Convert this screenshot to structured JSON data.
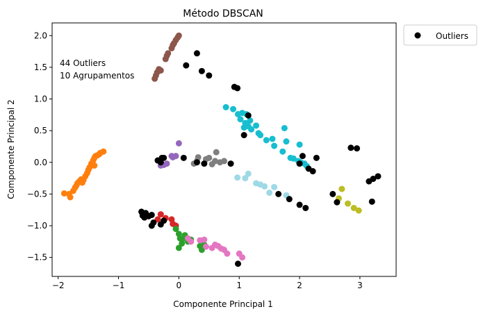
{
  "chart_data": {
    "type": "scatter",
    "title": "Método DBSCAN",
    "xlabel": "Componente Principal 1",
    "ylabel": "Componente Principal 2",
    "xlim": [
      -2.1,
      3.6
    ],
    "ylim": [
      -1.8,
      2.2
    ],
    "xticks": [
      -2,
      -1,
      0,
      1,
      2,
      3
    ],
    "yticks": [
      -1.5,
      -1.0,
      -0.5,
      0.0,
      0.5,
      1.0,
      1.5,
      2.0
    ],
    "grid": false,
    "legend_position": "outside-top-right",
    "annotation": [
      "44 Outliers",
      "10 Agrupamentos"
    ],
    "series": [
      {
        "name": "Outliers",
        "color": "#000000",
        "points": [
          [
            0.3,
            1.72
          ],
          [
            0.12,
            1.53
          ],
          [
            0.38,
            1.44
          ],
          [
            0.5,
            1.37
          ],
          [
            0.92,
            1.19
          ],
          [
            0.97,
            1.17
          ],
          [
            1.15,
            0.74
          ],
          [
            1.08,
            0.43
          ],
          [
            -0.35,
            0.03
          ],
          [
            -0.3,
            0.0
          ],
          [
            -0.28,
            0.07
          ],
          [
            -0.25,
            0.07
          ],
          [
            0.08,
            0.07
          ],
          [
            0.3,
            0.0
          ],
          [
            0.42,
            -0.02
          ],
          [
            0.86,
            -0.02
          ],
          [
            1.65,
            -0.5
          ],
          [
            1.83,
            -0.58
          ],
          [
            2.0,
            -0.02
          ],
          [
            2.05,
            0.1
          ],
          [
            2.15,
            -0.1
          ],
          [
            2.22,
            -0.14
          ],
          [
            2.28,
            0.07
          ],
          [
            2.0,
            -0.67
          ],
          [
            2.1,
            -0.72
          ],
          [
            2.55,
            -0.5
          ],
          [
            2.62,
            -0.63
          ],
          [
            2.85,
            0.23
          ],
          [
            2.95,
            0.22
          ],
          [
            3.15,
            -0.3
          ],
          [
            3.22,
            -0.26
          ],
          [
            3.3,
            -0.22
          ],
          [
            3.2,
            -0.62
          ],
          [
            -0.62,
            -0.78
          ],
          [
            -0.6,
            -0.84
          ],
          [
            -0.57,
            -0.87
          ],
          [
            -0.55,
            -0.8
          ],
          [
            -0.5,
            -0.85
          ],
          [
            -0.45,
            -0.83
          ],
          [
            -0.42,
            -0.95
          ],
          [
            -0.45,
            -1.0
          ],
          [
            -0.3,
            -0.98
          ],
          [
            -0.25,
            -0.92
          ],
          [
            0.98,
            -1.6
          ]
        ]
      },
      {
        "name": "",
        "color": "#8c564b",
        "points": [
          [
            -0.4,
            1.32
          ],
          [
            -0.38,
            1.37
          ],
          [
            -0.36,
            1.42
          ],
          [
            -0.33,
            1.47
          ],
          [
            -0.3,
            1.45
          ],
          [
            -0.22,
            1.63
          ],
          [
            -0.2,
            1.68
          ],
          [
            -0.18,
            1.72
          ],
          [
            -0.12,
            1.8
          ],
          [
            -0.1,
            1.85
          ],
          [
            -0.08,
            1.88
          ],
          [
            -0.05,
            1.93
          ],
          [
            -0.02,
            1.97
          ],
          [
            0.0,
            2.0
          ]
        ]
      },
      {
        "name": "",
        "color": "#17becf",
        "points": [
          [
            0.78,
            0.87
          ],
          [
            0.9,
            0.84
          ],
          [
            0.98,
            0.76
          ],
          [
            1.02,
            0.68
          ],
          [
            1.05,
            0.78
          ],
          [
            1.08,
            0.55
          ],
          [
            1.1,
            0.62
          ],
          [
            1.12,
            0.76
          ],
          [
            1.15,
            0.57
          ],
          [
            1.18,
            0.66
          ],
          [
            1.2,
            0.52
          ],
          [
            1.28,
            0.58
          ],
          [
            1.32,
            0.46
          ],
          [
            1.35,
            0.43
          ],
          [
            1.45,
            0.35
          ],
          [
            1.55,
            0.37
          ],
          [
            1.58,
            0.26
          ],
          [
            1.72,
            0.17
          ],
          [
            1.75,
            0.54
          ],
          [
            1.78,
            0.33
          ],
          [
            1.85,
            0.07
          ],
          [
            1.9,
            0.06
          ],
          [
            1.98,
            0.02
          ],
          [
            2.0,
            0.28
          ],
          [
            2.02,
            0.0
          ],
          [
            2.08,
            -0.02
          ],
          [
            2.12,
            -0.06
          ]
        ]
      },
      {
        "name": "",
        "color": "#ff7f0e",
        "points": [
          [
            -1.9,
            -0.49
          ],
          [
            -1.82,
            -0.5
          ],
          [
            -1.8,
            -0.55
          ],
          [
            -1.75,
            -0.45
          ],
          [
            -1.72,
            -0.4
          ],
          [
            -1.7,
            -0.37
          ],
          [
            -1.68,
            -0.33
          ],
          [
            -1.65,
            -0.3
          ],
          [
            -1.62,
            -0.27
          ],
          [
            -1.6,
            -0.32
          ],
          [
            -1.58,
            -0.28
          ],
          [
            -1.55,
            -0.22
          ],
          [
            -1.52,
            -0.17
          ],
          [
            -1.5,
            -0.12
          ],
          [
            -1.48,
            -0.08
          ],
          [
            -1.45,
            -0.02
          ],
          [
            -1.42,
            0.03
          ],
          [
            -1.4,
            0.07
          ],
          [
            -1.38,
            0.1
          ],
          [
            -1.35,
            0.11
          ],
          [
            -1.32,
            0.13
          ],
          [
            -1.3,
            0.15
          ],
          [
            -1.25,
            0.17
          ],
          [
            -1.4,
            -0.05
          ]
        ]
      },
      {
        "name": "",
        "color": "#9467bd",
        "points": [
          [
            -0.25,
            -0.04
          ],
          [
            -0.2,
            -0.02
          ],
          [
            -0.1,
            0.08
          ],
          [
            -0.05,
            0.1
          ],
          [
            -0.12,
            0.1
          ],
          [
            -0.3,
            -0.05
          ],
          [
            0.0,
            0.3
          ]
        ]
      },
      {
        "name": "",
        "color": "#7f7f7f",
        "points": [
          [
            0.25,
            -0.02
          ],
          [
            0.3,
            0.02
          ],
          [
            0.32,
            0.08
          ],
          [
            0.45,
            0.05
          ],
          [
            0.5,
            0.07
          ],
          [
            0.55,
            -0.03
          ],
          [
            0.6,
            0.02
          ],
          [
            0.62,
            0.16
          ],
          [
            0.68,
            0.0
          ],
          [
            0.75,
            0.02
          ]
        ]
      },
      {
        "name": "",
        "color": "#9edae5",
        "points": [
          [
            0.97,
            -0.24
          ],
          [
            1.1,
            -0.25
          ],
          [
            1.15,
            -0.18
          ],
          [
            1.28,
            -0.33
          ],
          [
            1.35,
            -0.35
          ],
          [
            1.42,
            -0.38
          ],
          [
            1.5,
            -0.48
          ],
          [
            1.58,
            -0.39
          ],
          [
            1.78,
            -0.52
          ]
        ]
      },
      {
        "name": "",
        "color": "#d62728",
        "points": [
          [
            -0.35,
            -0.9
          ],
          [
            -0.3,
            -0.82
          ],
          [
            -0.22,
            -0.88
          ],
          [
            -0.12,
            -0.9
          ],
          [
            -0.1,
            -0.97
          ],
          [
            -0.05,
            -1.0
          ]
        ]
      },
      {
        "name": "",
        "color": "#2ca02c",
        "points": [
          [
            -0.05,
            -1.05
          ],
          [
            0.0,
            -1.13
          ],
          [
            0.02,
            -1.2
          ],
          [
            0.05,
            -1.28
          ],
          [
            0.08,
            -1.2
          ],
          [
            0.1,
            -1.15
          ],
          [
            0.15,
            -1.25
          ],
          [
            0.2,
            -1.22
          ],
          [
            0.35,
            -1.32
          ],
          [
            0.38,
            -1.38
          ],
          [
            0.42,
            -1.3
          ],
          [
            0.0,
            -1.35
          ]
        ]
      },
      {
        "name": "",
        "color": "#e377c2",
        "points": [
          [
            0.15,
            -1.2
          ],
          [
            0.2,
            -1.25
          ],
          [
            0.35,
            -1.23
          ],
          [
            0.42,
            -1.22
          ],
          [
            0.45,
            -1.33
          ],
          [
            0.55,
            -1.35
          ],
          [
            0.6,
            -1.3
          ],
          [
            0.65,
            -1.32
          ],
          [
            0.7,
            -1.36
          ],
          [
            0.75,
            -1.38
          ],
          [
            0.8,
            -1.44
          ],
          [
            1.0,
            -1.44
          ],
          [
            1.05,
            -1.5
          ]
        ]
      },
      {
        "name": "",
        "color": "#bcbd22",
        "points": [
          [
            2.7,
            -0.42
          ],
          [
            2.65,
            -0.57
          ],
          [
            2.8,
            -0.65
          ],
          [
            2.9,
            -0.72
          ],
          [
            2.98,
            -0.76
          ]
        ]
      }
    ]
  }
}
